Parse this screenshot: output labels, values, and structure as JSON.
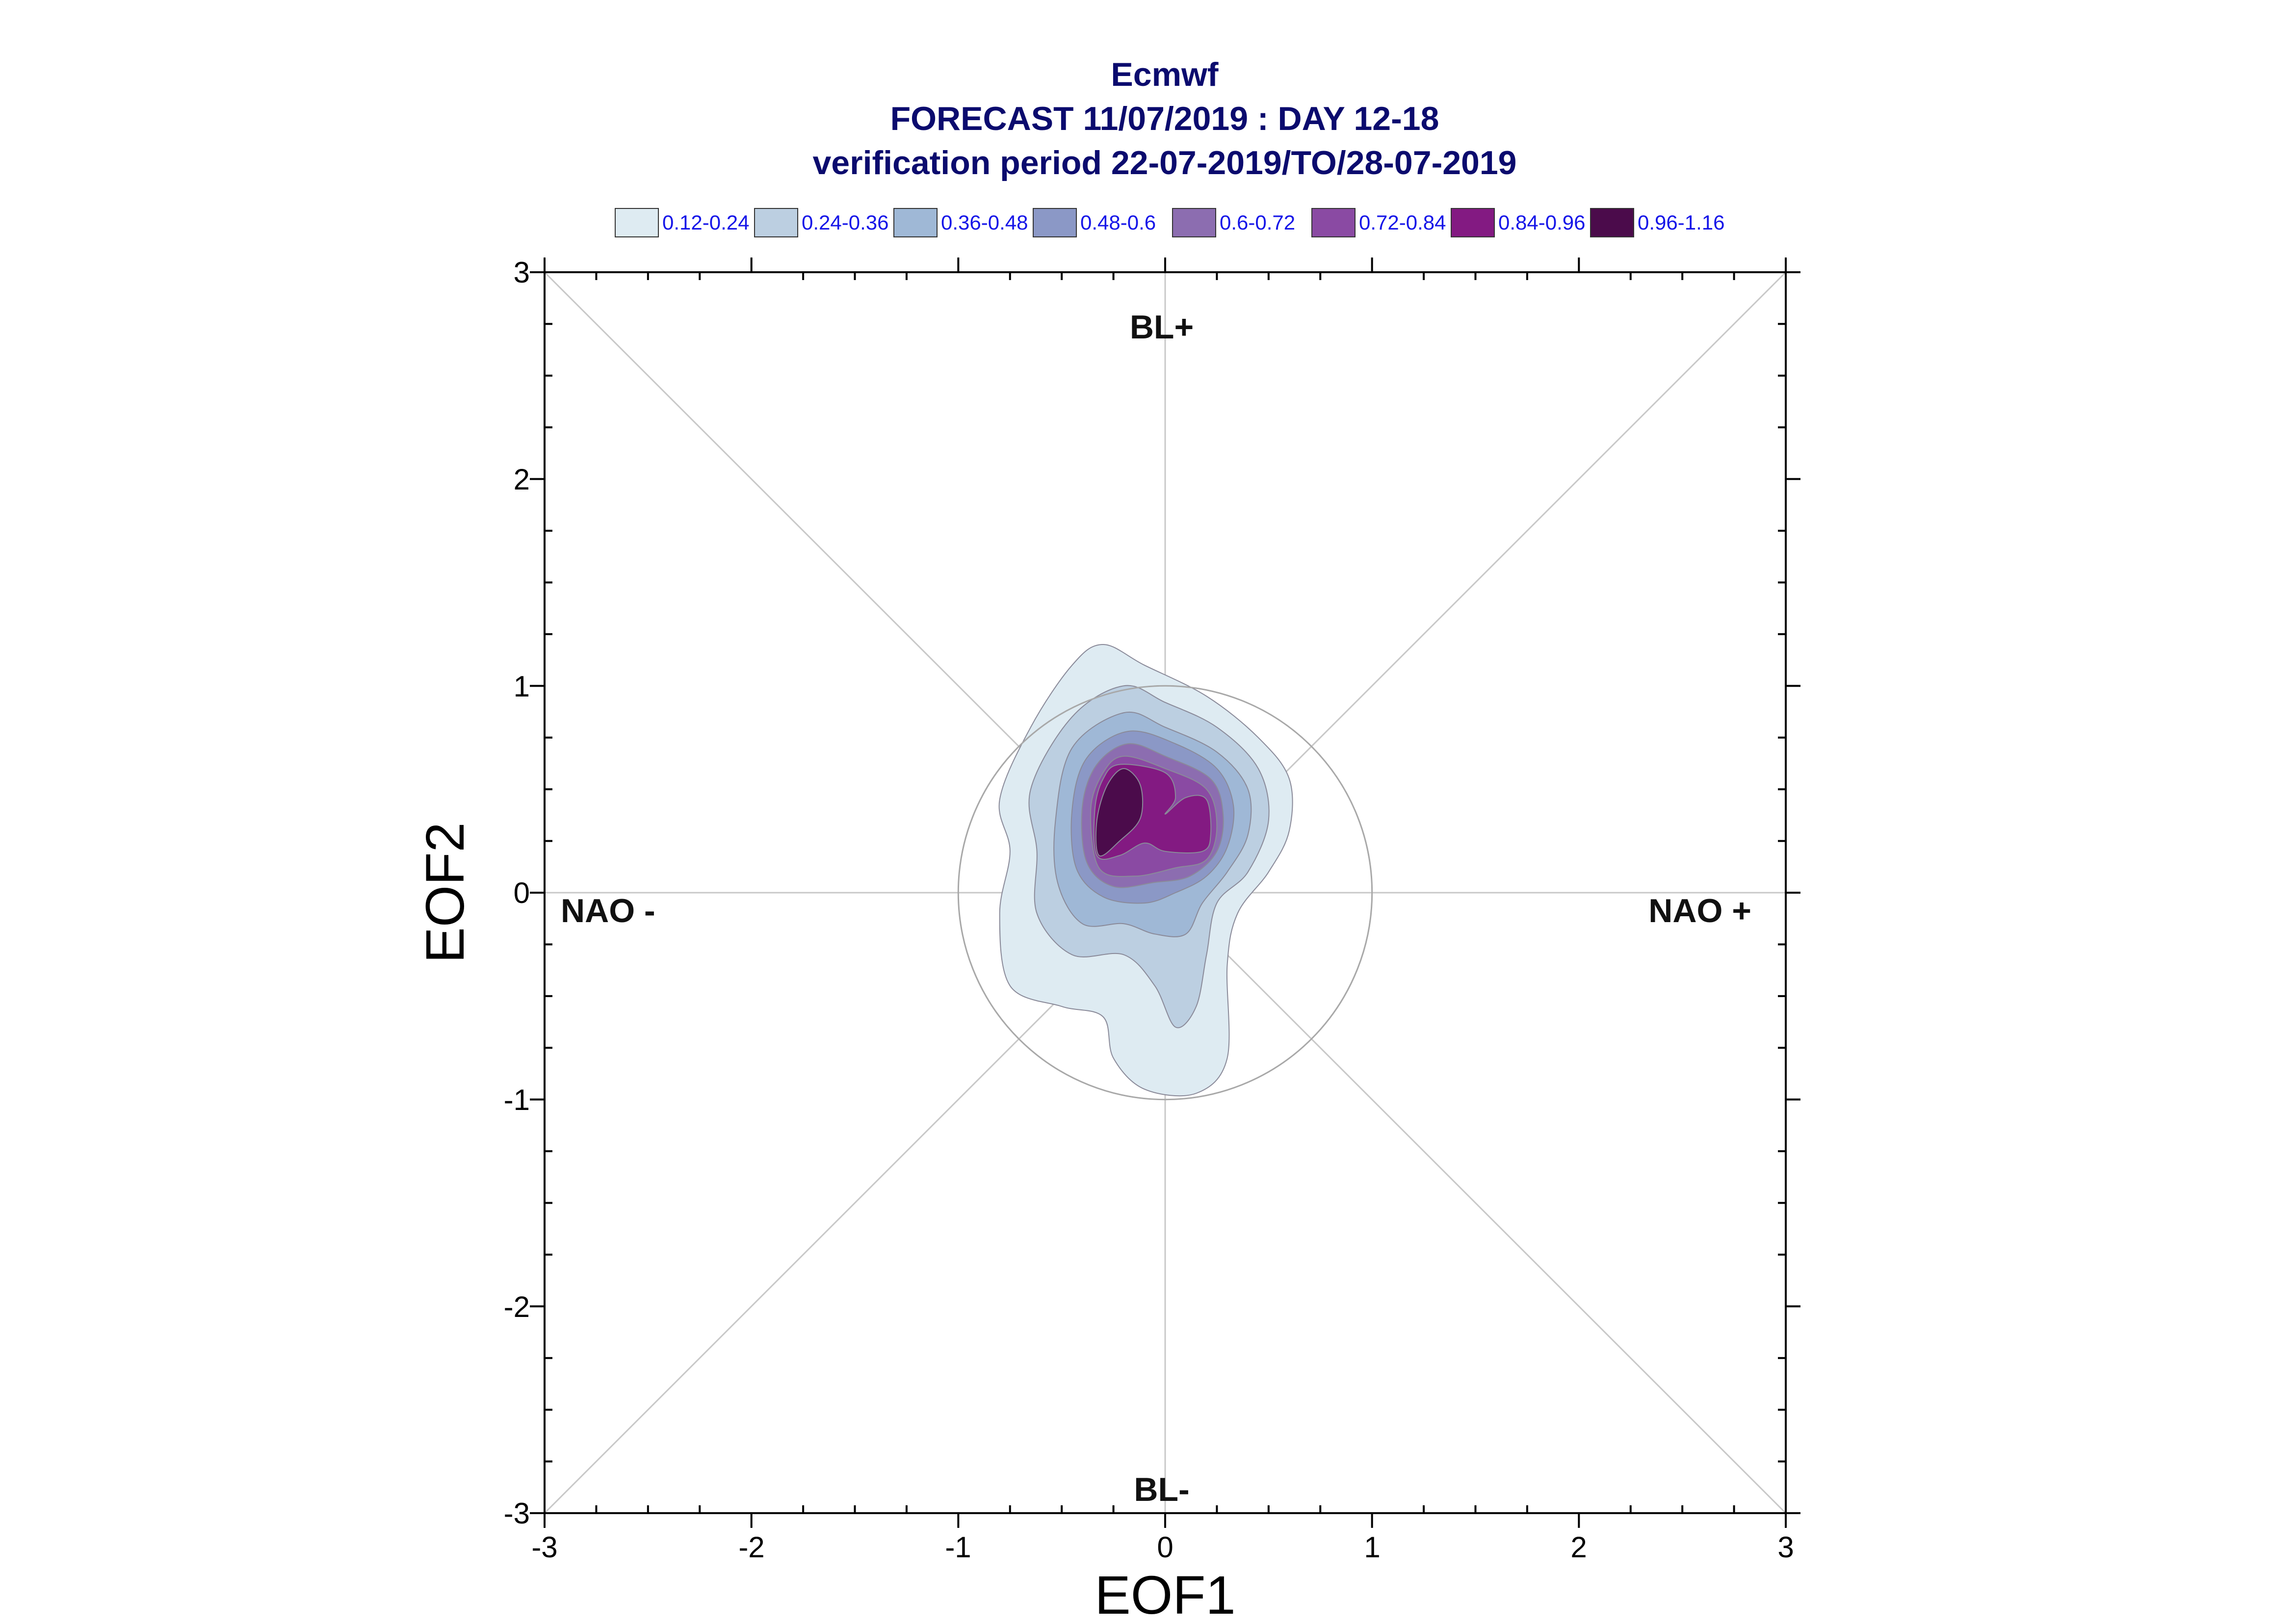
{
  "title_lines": [
    "Ecmwf",
    "FORECAST 11/07/2019 : DAY 12-18",
    "verification period 22-07-2019/TO/28-07-2019"
  ],
  "legend": [
    {
      "label": "0.12-0.24",
      "color": "#deebf2"
    },
    {
      "label": "0.24-0.36",
      "color": "#bccfe1"
    },
    {
      "label": "0.36-0.48",
      "color": "#9fb8d6"
    },
    {
      "label": "0.48-0.6",
      "color": "#8b98c6"
    },
    {
      "label": "0.6-0.72",
      "color": "#8c6db0"
    },
    {
      "label": "0.72-0.84",
      "color": "#8a4aa3"
    },
    {
      "label": "0.84-0.96",
      "color": "#831a82"
    },
    {
      "label": "0.96-1.16",
      "color": "#4b0b4b"
    }
  ],
  "regime_labels": {
    "top": "BL+",
    "bottom": "BL-",
    "left": "NAO -",
    "right": "NAO +"
  },
  "chart_data": {
    "type": "contour",
    "xlabel": "EOF1",
    "ylabel": "EOF2",
    "xlim": [
      -3,
      3
    ],
    "ylim": [
      -3,
      3
    ],
    "xticks": [
      "-3",
      "-2",
      "-1",
      "0",
      "1",
      "2",
      "3"
    ],
    "yticks": [
      "-3",
      "-2",
      "-1",
      "0",
      "1",
      "2",
      "3"
    ],
    "reference_circle_radius": 1,
    "density_levels": [
      {
        "range": "0.12-0.24",
        "outline": [
          [
            -0.3,
            1.2
          ],
          [
            -0.1,
            1.1
          ],
          [
            0.2,
            0.95
          ],
          [
            0.45,
            0.75
          ],
          [
            0.6,
            0.55
          ],
          [
            0.6,
            0.3
          ],
          [
            0.5,
            0.1
          ],
          [
            0.35,
            -0.1
          ],
          [
            0.3,
            -0.35
          ],
          [
            0.3,
            -0.8
          ],
          [
            0.15,
            -0.97
          ],
          [
            -0.1,
            -0.95
          ],
          [
            -0.25,
            -0.8
          ],
          [
            -0.3,
            -0.6
          ],
          [
            -0.5,
            -0.55
          ],
          [
            -0.75,
            -0.45
          ],
          [
            -0.8,
            -0.1
          ],
          [
            -0.75,
            0.2
          ],
          [
            -0.8,
            0.45
          ],
          [
            -0.65,
            0.8
          ],
          [
            -0.45,
            1.1
          ]
        ]
      },
      {
        "range": "0.24-0.36",
        "outline": [
          [
            -0.2,
            1.0
          ],
          [
            0.0,
            0.92
          ],
          [
            0.25,
            0.8
          ],
          [
            0.45,
            0.6
          ],
          [
            0.5,
            0.35
          ],
          [
            0.4,
            0.1
          ],
          [
            0.25,
            -0.05
          ],
          [
            0.2,
            -0.3
          ],
          [
            0.15,
            -0.55
          ],
          [
            0.05,
            -0.65
          ],
          [
            -0.05,
            -0.45
          ],
          [
            -0.2,
            -0.3
          ],
          [
            -0.45,
            -0.3
          ],
          [
            -0.62,
            -0.1
          ],
          [
            -0.62,
            0.2
          ],
          [
            -0.65,
            0.5
          ],
          [
            -0.45,
            0.85
          ]
        ]
      },
      {
        "range": "0.36-0.48",
        "outline": [
          [
            -0.2,
            0.87
          ],
          [
            0.0,
            0.8
          ],
          [
            0.25,
            0.68
          ],
          [
            0.4,
            0.5
          ],
          [
            0.4,
            0.28
          ],
          [
            0.3,
            0.1
          ],
          [
            0.18,
            -0.05
          ],
          [
            0.1,
            -0.2
          ],
          [
            -0.05,
            -0.2
          ],
          [
            -0.2,
            -0.15
          ],
          [
            -0.4,
            -0.15
          ],
          [
            -0.52,
            0.05
          ],
          [
            -0.53,
            0.35
          ],
          [
            -0.45,
            0.7
          ]
        ]
      },
      {
        "range": "0.48-0.6",
        "outline": [
          [
            -0.18,
            0.78
          ],
          [
            0.05,
            0.72
          ],
          [
            0.25,
            0.6
          ],
          [
            0.33,
            0.42
          ],
          [
            0.3,
            0.22
          ],
          [
            0.2,
            0.08
          ],
          [
            0.05,
            0.0
          ],
          [
            -0.1,
            -0.05
          ],
          [
            -0.3,
            -0.02
          ],
          [
            -0.43,
            0.12
          ],
          [
            -0.45,
            0.4
          ],
          [
            -0.38,
            0.65
          ]
        ]
      },
      {
        "range": "0.6-0.72",
        "outline": [
          [
            -0.18,
            0.72
          ],
          [
            0.0,
            0.66
          ],
          [
            0.22,
            0.55
          ],
          [
            0.28,
            0.38
          ],
          [
            0.25,
            0.2
          ],
          [
            0.12,
            0.08
          ],
          [
            -0.05,
            0.05
          ],
          [
            -0.25,
            0.03
          ],
          [
            -0.38,
            0.15
          ],
          [
            -0.4,
            0.42
          ],
          [
            -0.33,
            0.62
          ]
        ]
      },
      {
        "range": "0.72-0.84",
        "outline": [
          [
            -0.2,
            0.66
          ],
          [
            0.0,
            0.6
          ],
          [
            0.2,
            0.5
          ],
          [
            0.25,
            0.32
          ],
          [
            0.2,
            0.16
          ],
          [
            0.05,
            0.12
          ],
          [
            -0.15,
            0.08
          ],
          [
            -0.32,
            0.12
          ],
          [
            -0.36,
            0.4
          ],
          [
            -0.3,
            0.58
          ]
        ]
      },
      {
        "range": "0.84-0.96",
        "outline": [
          [
            -0.22,
            0.62
          ],
          [
            0.0,
            0.58
          ],
          [
            0.05,
            0.46
          ],
          [
            0.0,
            0.38
          ],
          [
            0.1,
            0.46
          ],
          [
            0.2,
            0.45
          ],
          [
            0.22,
            0.28
          ],
          [
            0.18,
            0.2
          ],
          [
            0.0,
            0.2
          ],
          [
            -0.1,
            0.24
          ],
          [
            -0.22,
            0.18
          ],
          [
            -0.33,
            0.18
          ],
          [
            -0.34,
            0.4
          ],
          [
            -0.3,
            0.55
          ]
        ]
      },
      {
        "range": "0.96-1.16",
        "outline": [
          [
            -0.2,
            0.6
          ],
          [
            -0.12,
            0.52
          ],
          [
            -0.12,
            0.36
          ],
          [
            -0.22,
            0.25
          ],
          [
            -0.32,
            0.18
          ],
          [
            -0.33,
            0.35
          ],
          [
            -0.28,
            0.52
          ]
        ]
      }
    ]
  }
}
